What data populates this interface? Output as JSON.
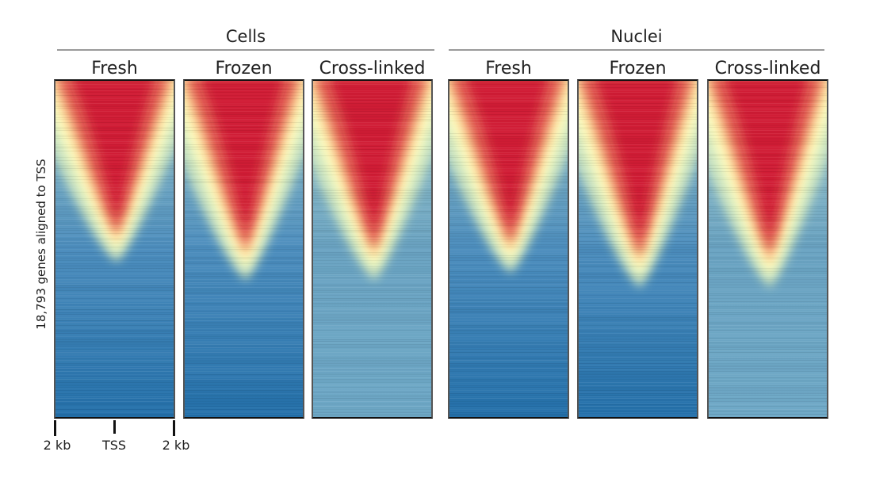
{
  "chart_data": {
    "type": "heatmap",
    "groups": [
      {
        "name": "Cells",
        "panels": [
          "Fresh",
          "Frozen",
          "Cross-linked"
        ]
      },
      {
        "name": "Nuclei",
        "panels": [
          "Fresh",
          "Frozen",
          "Cross-linked"
        ]
      }
    ],
    "ylabel": "18,793 genes aligned to TSS",
    "x_ticks": [
      "2 kb",
      "TSS",
      "2 kb"
    ],
    "colormap": [
      "#1f6aa5",
      "#6da9c9",
      "#d7ecc0",
      "#ffffc0",
      "#fbc88a",
      "#e05a4f",
      "#d01f36"
    ],
    "panels": [
      {
        "group": "Cells",
        "condition": "Fresh",
        "signal_apex_fraction": 0.5
      },
      {
        "group": "Cells",
        "condition": "Frozen",
        "signal_apex_fraction": 0.55
      },
      {
        "group": "Cells",
        "condition": "Cross-linked",
        "signal_apex_fraction": 0.55
      },
      {
        "group": "Nuclei",
        "condition": "Fresh",
        "signal_apex_fraction": 0.53
      },
      {
        "group": "Nuclei",
        "condition": "Frozen",
        "signal_apex_fraction": 0.57
      },
      {
        "group": "Nuclei",
        "condition": "Cross-linked",
        "signal_apex_fraction": 0.57
      }
    ]
  }
}
